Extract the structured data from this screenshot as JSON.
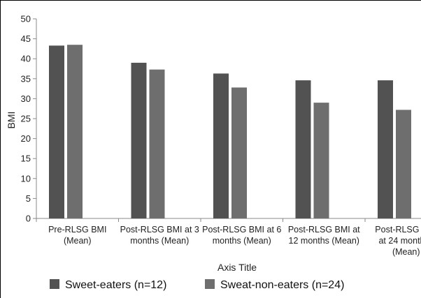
{
  "chart_data": {
    "type": "bar",
    "title": "",
    "xlabel": "Axis Title",
    "ylabel": "BMI",
    "ylim": [
      0,
      50
    ],
    "yticks": [
      0,
      5,
      10,
      15,
      20,
      25,
      30,
      35,
      40,
      45,
      50
    ],
    "grid": false,
    "legend_position": "bottom",
    "categories": [
      [
        "Pre-RLSG BMI",
        "(Mean)"
      ],
      [
        "Post-RLSG BMI at 3",
        "months (Mean)"
      ],
      [
        "Post-RLSG BMI at 6",
        "months (Mean)"
      ],
      [
        "Post-RLSG BMI at",
        "12 months (Mean)"
      ],
      [
        "Post-RLSG BMI",
        "at 24 monthss",
        "(Mean)"
      ]
    ],
    "series": [
      {
        "name": "Sweet-eaters (n=12)",
        "color": "#525252",
        "values": [
          43.3,
          39.0,
          36.3,
          34.6,
          34.6
        ]
      },
      {
        "name": "Sweat-non-eaters (n=24)",
        "color": "#6e6e6e",
        "values": [
          43.5,
          37.3,
          32.8,
          29.0,
          27.2
        ]
      }
    ]
  }
}
